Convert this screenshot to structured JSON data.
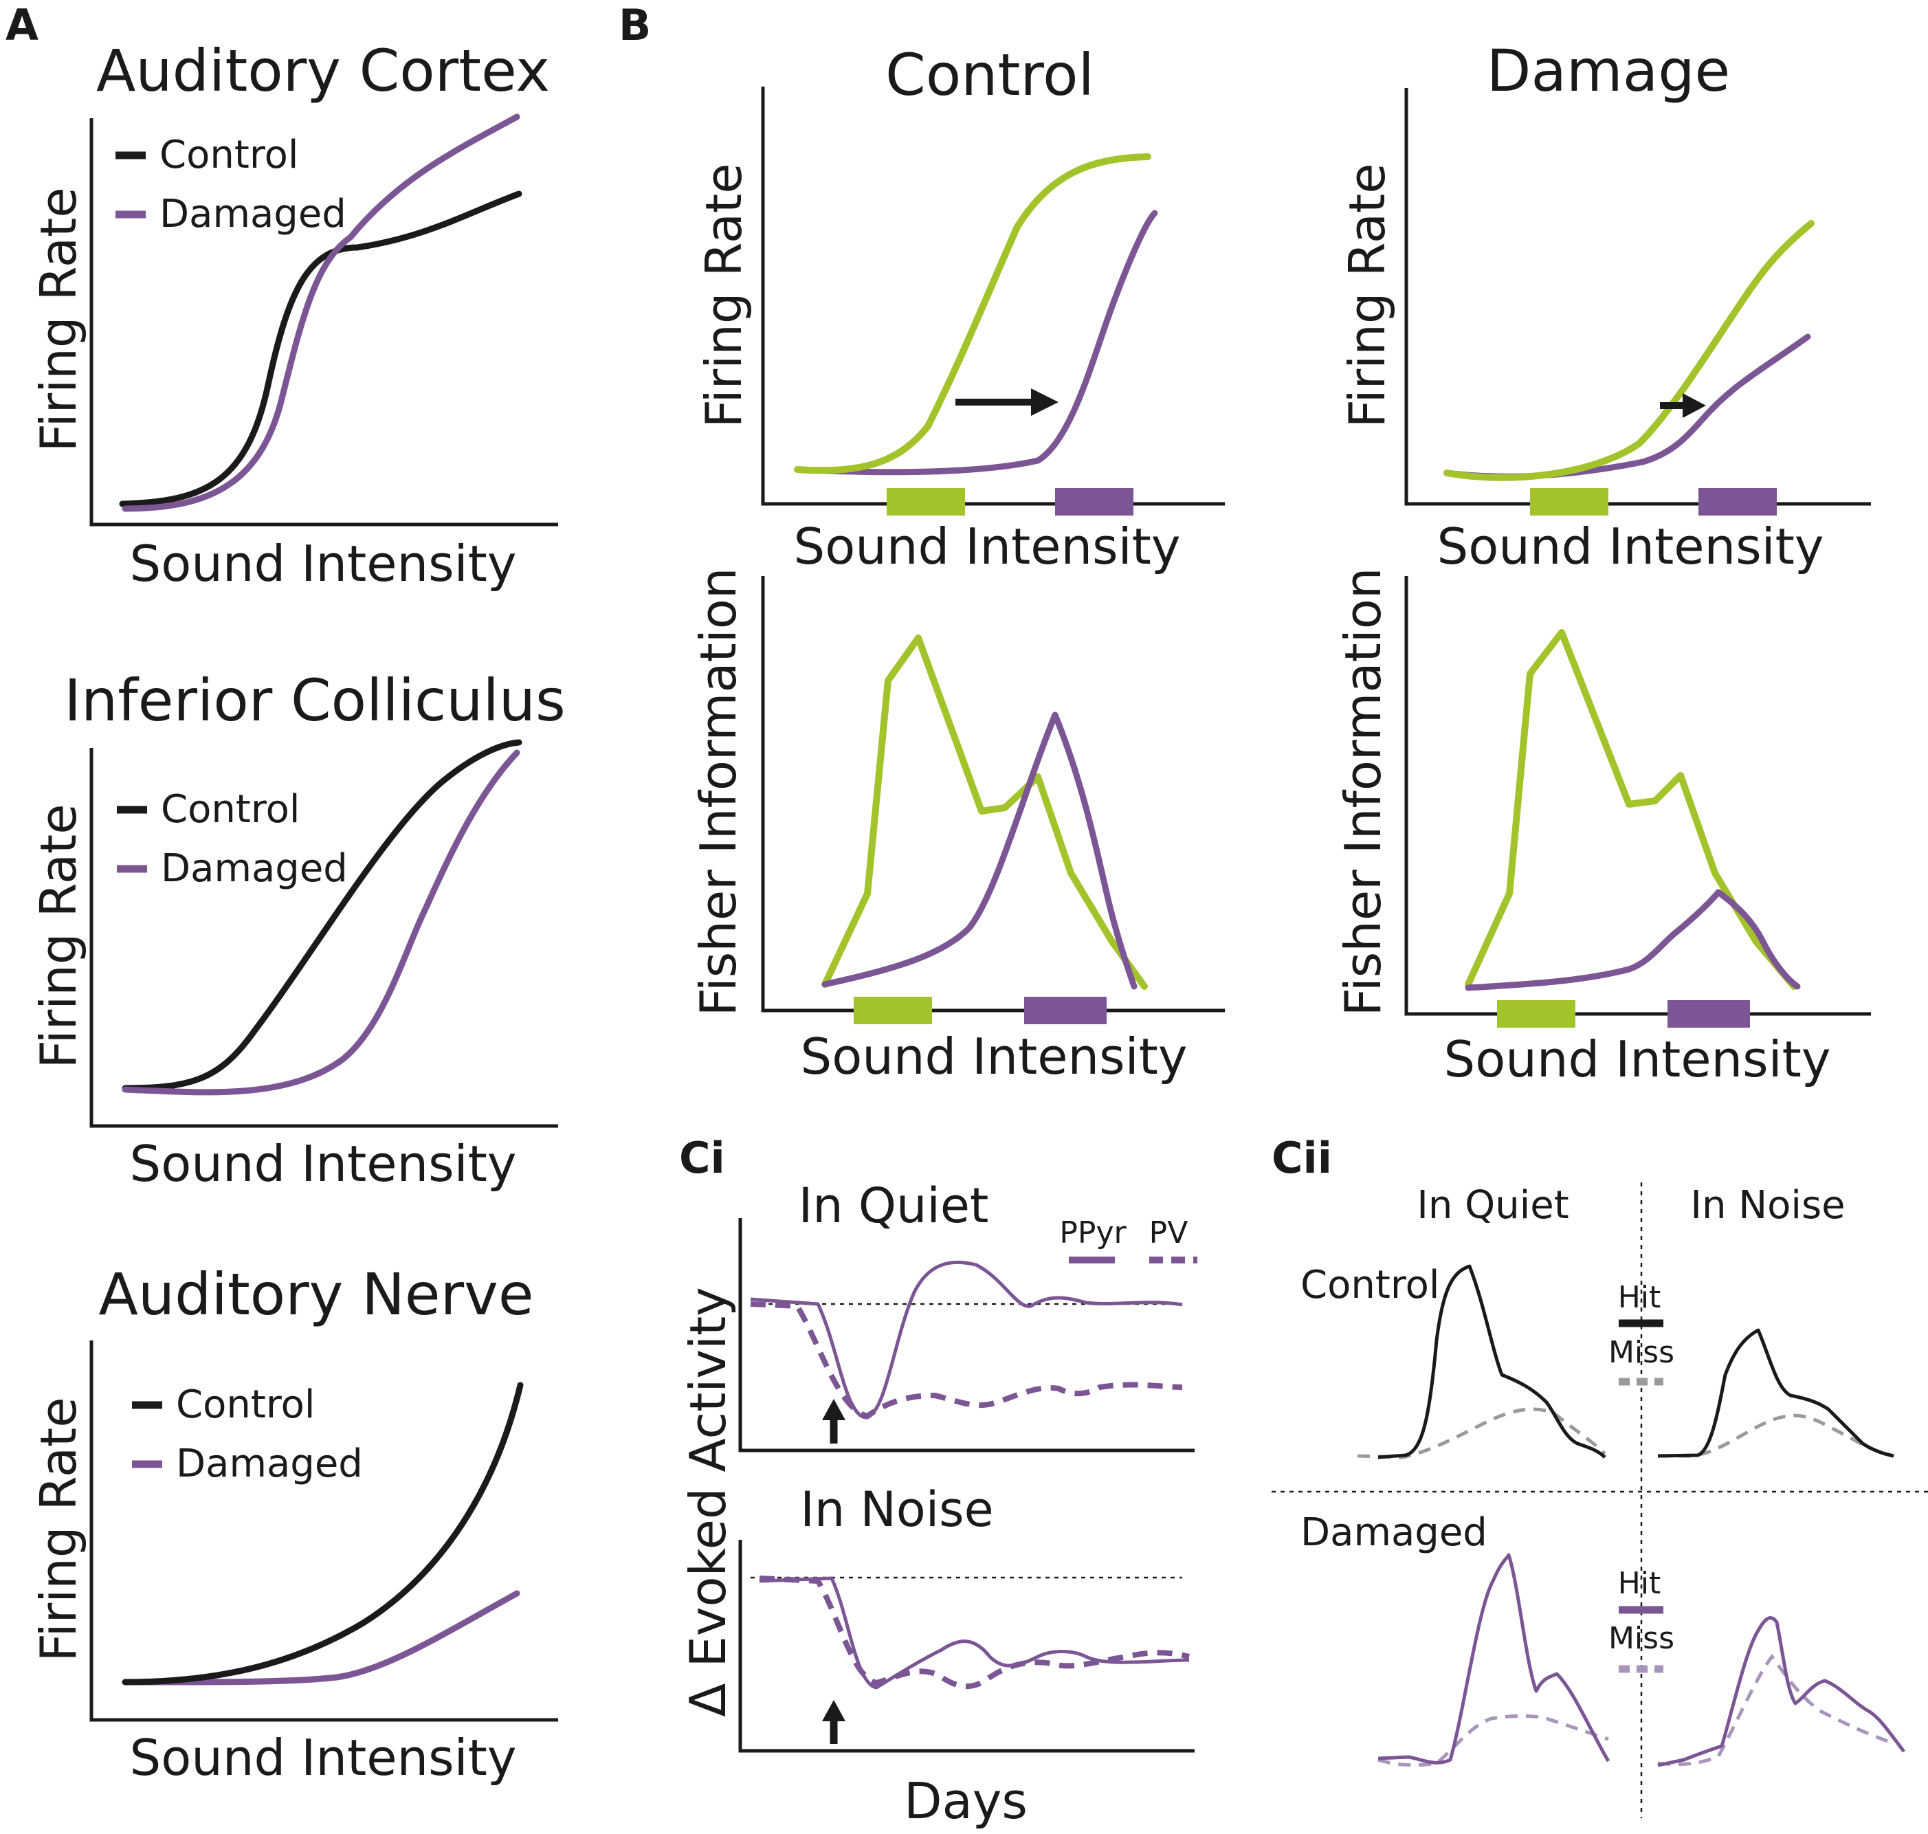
{
  "colors": {
    "control": "#1a1a1a",
    "damaged": "#7b5594",
    "green": "#a3c32b",
    "miss_gray": "#9a9a9a",
    "miss_purple": "#a995bb"
  },
  "panel_A": {
    "letter": "A",
    "plots": [
      {
        "title": "Auditory Cortex",
        "ylabel": "Firing Rate",
        "xlabel": "Sound Intensity",
        "legend": [
          "Control",
          "Damaged"
        ]
      },
      {
        "title": "Inferior Colliculus",
        "ylabel": "Firing Rate",
        "xlabel": "Sound Intensity",
        "legend": [
          "Control",
          "Damaged"
        ]
      },
      {
        "title": "Auditory Nerve",
        "ylabel": "Firing Rate",
        "xlabel": "Sound Intensity",
        "legend": [
          "Control",
          "Damaged"
        ]
      }
    ]
  },
  "panel_B": {
    "letter": "B",
    "columns": [
      {
        "title": "Control",
        "top_ylabel": "Firing Rate",
        "bottom_ylabel": "Fisher Information",
        "xlabel": "Sound Intensity"
      },
      {
        "title": "Damage",
        "top_ylabel": "Firing Rate",
        "bottom_ylabel": "Fisher Information",
        "xlabel": "Sound Intensity"
      }
    ]
  },
  "panel_Ci": {
    "letter": "Ci",
    "top_title": "In Quiet",
    "bottom_title": "In Noise",
    "ylabel": "Δ Evoked Activity",
    "xlabel": "Days",
    "legend": [
      "PPyr",
      "PV"
    ]
  },
  "panel_Cii": {
    "letter": "Cii",
    "col_titles": [
      "In Quiet",
      "In Noise"
    ],
    "row_titles": [
      "Control",
      "Damaged"
    ],
    "legend_hit": "Hit",
    "legend_miss": "Miss"
  }
}
